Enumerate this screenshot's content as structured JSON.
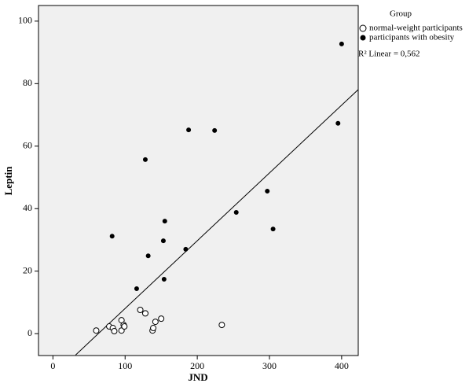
{
  "chart_data": {
    "type": "scatter",
    "x_label": "JND",
    "y_label": "Leptin",
    "xlim": [
      -20,
      423
    ],
    "ylim": [
      -7,
      105
    ],
    "xticks": [
      0,
      100,
      200,
      300,
      400
    ],
    "yticks": [
      0,
      20,
      40,
      60,
      80,
      100
    ],
    "legend_title": "Group",
    "series": [
      {
        "name": "normal-weight participants",
        "marker": "open",
        "color": "#000000",
        "x": [
          60,
          78,
          83,
          85,
          95,
          95,
          98,
          99,
          121,
          128,
          138,
          139,
          142,
          150,
          234
        ],
        "y": [
          1.0,
          2.3,
          1.8,
          0.8,
          4.3,
          1.0,
          2.8,
          2.3,
          7.6,
          6.5,
          1.0,
          1.8,
          3.8,
          4.8,
          2.8
        ]
      },
      {
        "name": "participants with obesity",
        "marker": "filled",
        "color": "#000000",
        "x": [
          82,
          116,
          128,
          132,
          153,
          155,
          154,
          184,
          188,
          224,
          254,
          297,
          305,
          395,
          400
        ],
        "y": [
          31.2,
          14.4,
          55.7,
          24.9,
          29.7,
          36.0,
          17.4,
          27.0,
          65.2,
          65.0,
          38.8,
          45.6,
          33.5,
          67.3,
          92.7
        ]
      }
    ],
    "fit_line": {
      "x": [
        31.5,
        423
      ],
      "y": [
        -6.8,
        78.1
      ]
    },
    "fit_label": "R² Linear = 0,562"
  }
}
